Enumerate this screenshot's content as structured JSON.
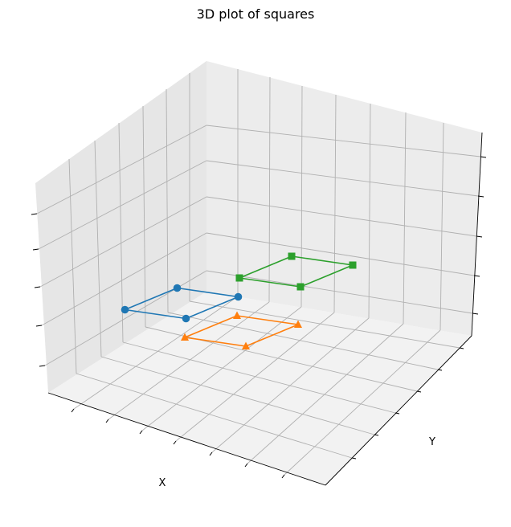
{
  "chart_data": {
    "type": "line",
    "projection": "3d",
    "title": "3D plot of squares",
    "xlabel": "X",
    "ylabel": "Y",
    "zlabel": "",
    "tick_labels_visible": false,
    "grid": true,
    "series": [
      {
        "color": "#1f77b4",
        "marker": "circle",
        "points": [
          [
            0,
            0,
            1.5
          ],
          [
            1,
            0,
            1.5
          ],
          [
            1,
            1,
            1.5
          ],
          [
            0,
            1,
            1.5
          ],
          [
            0,
            0,
            1.5
          ]
        ]
      },
      {
        "color": "#ff7f0e",
        "marker": "triangle",
        "points": [
          [
            1,
            0,
            1
          ],
          [
            2,
            0,
            1
          ],
          [
            2,
            1,
            1
          ],
          [
            1,
            1,
            1
          ],
          [
            1,
            0,
            1
          ]
        ]
      },
      {
        "color": "#2ca02c",
        "marker": "square",
        "points": [
          [
            1,
            1,
            2
          ],
          [
            2,
            1,
            2
          ],
          [
            2,
            2,
            2
          ],
          [
            1,
            2,
            2
          ],
          [
            1,
            1,
            2
          ]
        ]
      }
    ]
  }
}
